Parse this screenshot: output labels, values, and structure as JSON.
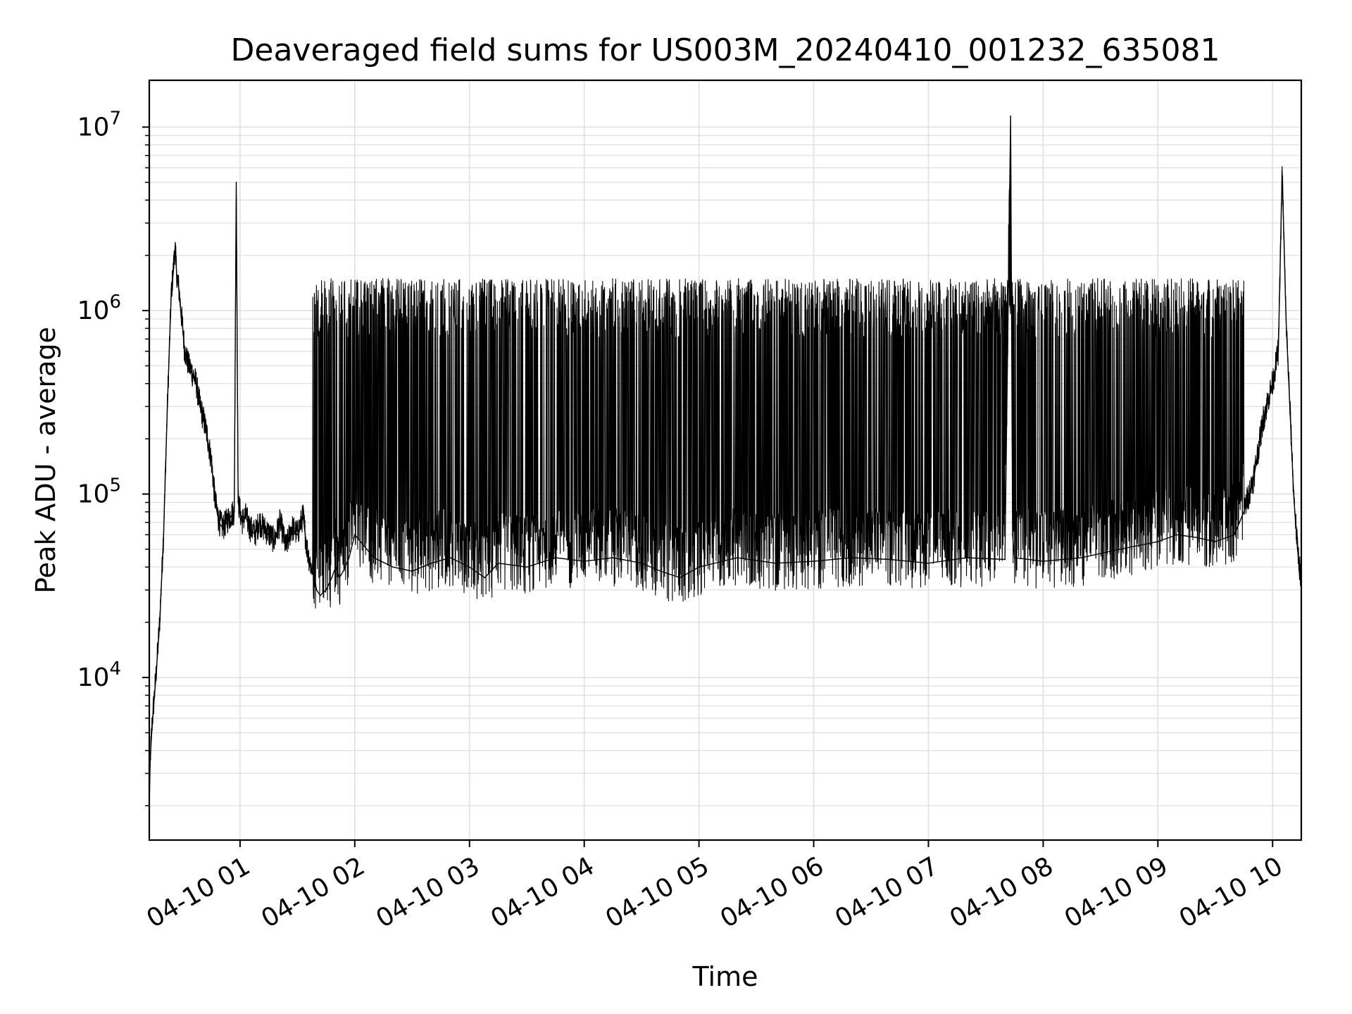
{
  "chart_data": {
    "type": "line",
    "title": "Deaveraged field sums for US003M_20240410_001232_635081",
    "xlabel": "Time",
    "ylabel": "Peak ADU - average",
    "yscale": "log",
    "ylim": [
      1300,
      18000000
    ],
    "xlim": [
      "2024-04-10T00:12:32",
      "2024-04-10T10:15:00"
    ],
    "x_ticks": [
      {
        "t": "2024-04-10T01:00:00",
        "label": "04-10 01"
      },
      {
        "t": "2024-04-10T02:00:00",
        "label": "04-10 02"
      },
      {
        "t": "2024-04-10T03:00:00",
        "label": "04-10 03"
      },
      {
        "t": "2024-04-10T04:00:00",
        "label": "04-10 04"
      },
      {
        "t": "2024-04-10T05:00:00",
        "label": "04-10 05"
      },
      {
        "t": "2024-04-10T06:00:00",
        "label": "04-10 06"
      },
      {
        "t": "2024-04-10T07:00:00",
        "label": "04-10 07"
      },
      {
        "t": "2024-04-10T08:00:00",
        "label": "04-10 08"
      },
      {
        "t": "2024-04-10T09:00:00",
        "label": "04-10 09"
      },
      {
        "t": "2024-04-10T10:00:00",
        "label": "04-10 10"
      }
    ],
    "y_ticks": [
      {
        "value": 10000,
        "base": "10",
        "exp": "4"
      },
      {
        "value": 100000,
        "base": "10",
        "exp": "5"
      },
      {
        "value": 1000000,
        "base": "10",
        "exp": "6"
      },
      {
        "value": 10000000,
        "base": "10",
        "exp": "7"
      }
    ],
    "grid": true,
    "line_color": "#000000",
    "grid_color": "#e0e0e0",
    "series": [
      {
        "x": [
          "2024-04-10T00:12:32",
          "2024-04-10T00:13:00",
          "2024-04-10T00:14:00",
          "2024-04-10T00:16:00",
          "2024-04-10T00:18:00",
          "2024-04-10T00:20:00",
          "2024-04-10T00:22:00",
          "2024-04-10T00:24:00",
          "2024-04-10T00:25:00",
          "2024-04-10T00:26:00",
          "2024-04-10T00:27:00",
          "2024-04-10T00:28:00",
          "2024-04-10T00:29:00",
          "2024-04-10T00:30:00",
          "2024-04-10T00:31:00",
          "2024-04-10T00:33:00",
          "2024-04-10T00:35:00",
          "2024-04-10T00:37:00",
          "2024-04-10T00:39:00",
          "2024-04-10T00:41:00",
          "2024-04-10T00:43:00",
          "2024-04-10T00:45:00",
          "2024-04-10T00:47:00",
          "2024-04-10T00:49:00",
          "2024-04-10T00:51:00",
          "2024-04-10T00:53:00",
          "2024-04-10T00:55:00",
          "2024-04-10T00:57:00",
          "2024-04-10T00:58:00",
          "2024-04-10T00:59:00",
          "2024-04-10T01:01:00",
          "2024-04-10T01:03:00",
          "2024-04-10T01:05:00",
          "2024-04-10T01:08:00",
          "2024-04-10T01:10:00",
          "2024-04-10T01:12:00",
          "2024-04-10T01:15:00",
          "2024-04-10T01:18:00",
          "2024-04-10T01:21:00",
          "2024-04-10T01:24:00",
          "2024-04-10T01:27:00",
          "2024-04-10T01:30:00",
          "2024-04-10T01:33:00",
          "2024-04-10T01:35:00",
          "2024-04-10T01:37:00",
          "2024-04-10T01:39:00",
          "2024-04-10T01:40:00",
          "2024-04-10T01:42:00",
          "2024-04-10T01:45:00",
          "2024-04-10T01:48:00",
          "2024-04-10T01:50:00",
          "2024-04-10T01:52:00",
          "2024-04-10T01:54:00",
          "2024-04-10T01:57:00",
          "2024-04-10T02:00:00",
          "2024-04-10T02:10:00",
          "2024-04-10T02:20:00",
          "2024-04-10T02:30:00",
          "2024-04-10T02:40:00",
          "2024-04-10T02:50:00",
          "2024-04-10T03:00:00",
          "2024-04-10T03:08:00",
          "2024-04-10T03:15:00",
          "2024-04-10T03:30:00",
          "2024-04-10T03:45:00",
          "2024-04-10T04:00:00",
          "2024-04-10T04:15:00",
          "2024-04-10T04:30:00",
          "2024-04-10T04:40:00",
          "2024-04-10T04:50:00",
          "2024-04-10T05:00:00",
          "2024-04-10T05:20:00",
          "2024-04-10T05:40:00",
          "2024-04-10T06:00:00",
          "2024-04-10T06:20:00",
          "2024-04-10T06:40:00",
          "2024-04-10T07:00:00",
          "2024-04-10T07:20:00",
          "2024-04-10T07:40:00",
          "2024-04-10T07:43:00",
          "2024-04-10T07:44:00",
          "2024-04-10T07:45:00",
          "2024-04-10T08:00:00",
          "2024-04-10T08:20:00",
          "2024-04-10T08:40:00",
          "2024-04-10T09:00:00",
          "2024-04-10T09:10:00",
          "2024-04-10T09:20:00",
          "2024-04-10T09:30:00",
          "2024-04-10T09:40:00",
          "2024-04-10T09:45:00",
          "2024-04-10T09:50:00",
          "2024-04-10T09:55:00",
          "2024-04-10T10:00:00",
          "2024-04-10T10:03:00",
          "2024-04-10T10:05:00",
          "2024-04-10T10:07:00",
          "2024-04-10T10:09:00",
          "2024-04-10T10:11:00",
          "2024-04-10T10:13:00",
          "2024-04-10T10:15:00"
        ],
        "y": [
          2000,
          3500,
          5500,
          10000,
          20000,
          60000,
          300000,
          1200000,
          1600000,
          2200000,
          1500000,
          1300000,
          1000000,
          800000,
          600000,
          500000,
          450000,
          400000,
          300000,
          250000,
          200000,
          150000,
          90000,
          70000,
          65000,
          70000,
          75000,
          80000,
          5000000,
          90000,
          70000,
          75000,
          65000,
          60000,
          70000,
          65000,
          60000,
          55000,
          70000,
          50000,
          65000,
          60000,
          75000,
          50000,
          40000,
          35000,
          30000,
          28000,
          30000,
          35000,
          40000,
          35000,
          38000,
          45000,
          60000,
          45000,
          40000,
          38000,
          42000,
          45000,
          40000,
          35000,
          42000,
          40000,
          45000,
          43000,
          45000,
          42000,
          38000,
          35000,
          40000,
          45000,
          42000,
          43000,
          45000,
          44000,
          42000,
          45000,
          44000,
          11500000,
          60000,
          45000,
          43000,
          45000,
          50000,
          55000,
          60000,
          58000,
          55000,
          60000,
          80000,
          120000,
          250000,
          400000,
          600000,
          5700000,
          900000,
          300000,
          100000,
          50000,
          33000
        ],
        "envelope_upper": 1300000,
        "envelope_lower": 35000
      }
    ]
  }
}
